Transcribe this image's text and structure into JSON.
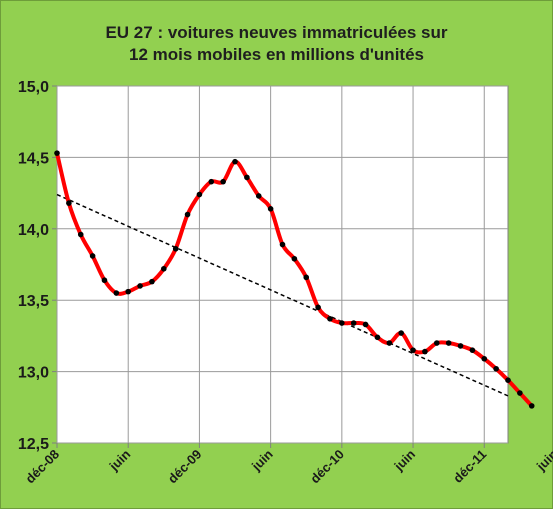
{
  "chart_data": {
    "type": "line",
    "title_lines": [
      "EU 27 : voitures  neuves immatriculées sur",
      "12 mois mobiles  en millions  d'unités"
    ],
    "xlabel": "",
    "ylabel": "",
    "ylim": [
      12.5,
      15.0
    ],
    "yticks": [
      12.5,
      13.0,
      13.5,
      14.0,
      14.5,
      15.0
    ],
    "ytick_labels": [
      "12,5",
      "13,0",
      "13,5",
      "14,0",
      "14,5",
      "15,0"
    ],
    "xlim_months": [
      0,
      38
    ],
    "xtick_labels": [
      "déc-08",
      "juin",
      "déc-09",
      "juin",
      "déc-10",
      "juin",
      "déc-11",
      "juin"
    ],
    "grid": true,
    "series": [
      {
        "type": "line-markers",
        "color": "#ff0000",
        "marker_color": "#000000",
        "points": [
          [
            0,
            14.53
          ],
          [
            1,
            14.18
          ],
          [
            2,
            13.96
          ],
          [
            3,
            13.81
          ],
          [
            4,
            13.64
          ],
          [
            5,
            13.55
          ],
          [
            6,
            13.56
          ],
          [
            7,
            13.6
          ],
          [
            8,
            13.63
          ],
          [
            9,
            13.72
          ],
          [
            10,
            13.86
          ],
          [
            11,
            14.1
          ],
          [
            12,
            14.24
          ],
          [
            13,
            14.33
          ],
          [
            14,
            14.33
          ],
          [
            15,
            14.47
          ],
          [
            16,
            14.36
          ],
          [
            17,
            14.23
          ],
          [
            18,
            14.14
          ],
          [
            19,
            13.89
          ],
          [
            20,
            13.79
          ],
          [
            21,
            13.66
          ],
          [
            22,
            13.45
          ],
          [
            23,
            13.37
          ],
          [
            24,
            13.34
          ],
          [
            25,
            13.34
          ],
          [
            26,
            13.33
          ],
          [
            27,
            13.24
          ],
          [
            28,
            13.2
          ],
          [
            29,
            13.27
          ],
          [
            30,
            13.15
          ],
          [
            31,
            13.14
          ],
          [
            32,
            13.2
          ],
          [
            33,
            13.2
          ],
          [
            34,
            13.18
          ],
          [
            35,
            13.15
          ],
          [
            36,
            13.09
          ],
          [
            37,
            13.02
          ],
          [
            38,
            12.94
          ],
          [
            39,
            12.85
          ],
          [
            40,
            12.76
          ]
        ]
      },
      {
        "type": "trendline",
        "style": "dashed",
        "color": "#000000",
        "from": [
          0,
          14.24
        ],
        "to": [
          38,
          12.83
        ]
      }
    ]
  }
}
